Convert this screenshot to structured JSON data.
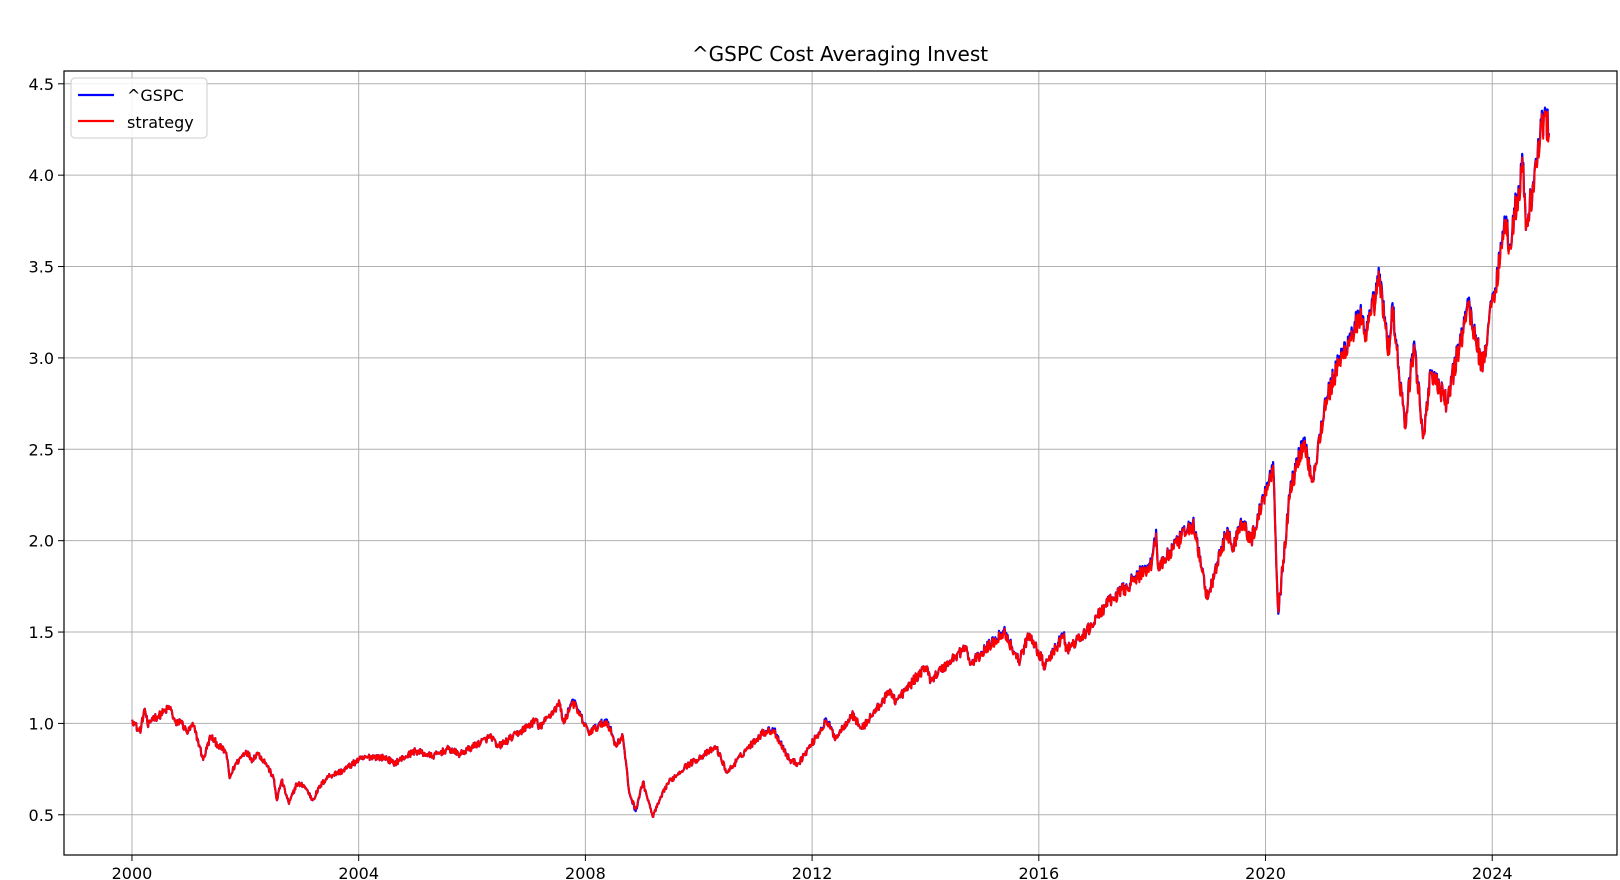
{
  "chart_data": {
    "type": "line",
    "title": "^GSPC Cost Averaging Invest",
    "xlabel": "",
    "ylabel": "",
    "x_axis": {
      "type": "date",
      "lim": [
        "1998-10-20",
        "2026-03-15"
      ],
      "ticks": [
        "2000",
        "2004",
        "2008",
        "2012",
        "2016",
        "2020",
        "2024"
      ]
    },
    "y_axis": {
      "lim": [
        0.28,
        4.57
      ],
      "ticks": [
        "0.5",
        "1.0",
        "1.5",
        "2.0",
        "2.5",
        "3.0",
        "3.5",
        "4.0",
        "4.5"
      ]
    },
    "grid": true,
    "legend": {
      "position": "top-left",
      "entries": [
        "^GSPC",
        "strategy"
      ]
    },
    "colors": {
      "^GSPC": "#0000ff",
      "strategy": "#ff0000",
      "grid": "#b0b0b0"
    },
    "series": [
      {
        "name": "^GSPC",
        "color": "#0000ff",
        "points": [
          [
            "2000-01-03",
            1.02
          ],
          [
            "2000-01-20",
            1.0
          ],
          [
            "2000-02-10",
            0.96
          ],
          [
            "2000-02-28",
            0.97
          ],
          [
            "2000-03-15",
            1.05
          ],
          [
            "2000-03-24",
            1.08
          ],
          [
            "2000-04-14",
            0.98
          ],
          [
            "2000-05-10",
            1.03
          ],
          [
            "2000-06-20",
            1.04
          ],
          [
            "2000-07-20",
            1.06
          ],
          [
            "2000-09-01",
            1.09
          ],
          [
            "2000-10-12",
            0.99
          ],
          [
            "2000-11-06",
            1.02
          ],
          [
            "2000-12-20",
            0.95
          ],
          [
            "2001-01-30",
            0.99
          ],
          [
            "2001-03-10",
            0.88
          ],
          [
            "2001-04-04",
            0.8
          ],
          [
            "2001-05-21",
            0.93
          ],
          [
            "2001-07-10",
            0.88
          ],
          [
            "2001-08-31",
            0.84
          ],
          [
            "2001-09-21",
            0.7
          ],
          [
            "2001-10-25",
            0.77
          ],
          [
            "2002-01-04",
            0.85
          ],
          [
            "2002-02-15",
            0.8
          ],
          [
            "2002-03-19",
            0.84
          ],
          [
            "2002-05-15",
            0.78
          ],
          [
            "2002-07-01",
            0.7
          ],
          [
            "2002-07-23",
            0.58
          ],
          [
            "2002-08-22",
            0.69
          ],
          [
            "2002-10-09",
            0.56
          ],
          [
            "2002-11-27",
            0.67
          ],
          [
            "2003-01-15",
            0.66
          ],
          [
            "2003-03-11",
            0.58
          ],
          [
            "2003-04-30",
            0.66
          ],
          [
            "2003-06-17",
            0.71
          ],
          [
            "2003-09-18",
            0.74
          ],
          [
            "2003-12-31",
            0.8
          ],
          [
            "2004-03-24",
            0.82
          ],
          [
            "2004-06-30",
            0.81
          ],
          [
            "2004-08-12",
            0.78
          ],
          [
            "2004-12-31",
            0.85
          ],
          [
            "2005-04-20",
            0.82
          ],
          [
            "2005-08-01",
            0.86
          ],
          [
            "2005-10-13",
            0.83
          ],
          [
            "2005-12-30",
            0.87
          ],
          [
            "2006-05-05",
            0.93
          ],
          [
            "2006-06-13",
            0.87
          ],
          [
            "2006-10-31",
            0.95
          ],
          [
            "2007-02-20",
            1.02
          ],
          [
            "2007-03-05",
            0.97
          ],
          [
            "2007-07-19",
            1.11
          ],
          [
            "2007-08-15",
            1.0
          ],
          [
            "2007-10-09",
            1.13
          ],
          [
            "2008-01-22",
            0.95
          ],
          [
            "2008-05-19",
            1.02
          ],
          [
            "2008-07-15",
            0.88
          ],
          [
            "2008-08-29",
            0.93
          ],
          [
            "2008-10-10",
            0.62
          ],
          [
            "2008-11-20",
            0.52
          ],
          [
            "2009-01-06",
            0.68
          ],
          [
            "2009-03-09",
            0.49
          ],
          [
            "2009-06-12",
            0.67
          ],
          [
            "2009-09-30",
            0.76
          ],
          [
            "2010-01-19",
            0.82
          ],
          [
            "2010-04-23",
            0.87
          ],
          [
            "2010-07-02",
            0.73
          ],
          [
            "2010-11-05",
            0.86
          ],
          [
            "2011-02-18",
            0.95
          ],
          [
            "2011-04-29",
            0.97
          ],
          [
            "2011-08-08",
            0.8
          ],
          [
            "2011-10-03",
            0.78
          ],
          [
            "2012-01-31",
            0.93
          ],
          [
            "2012-04-02",
            1.02
          ],
          [
            "2012-06-01",
            0.92
          ],
          [
            "2012-09-14",
            1.05
          ],
          [
            "2012-11-15",
            0.97
          ],
          [
            "2013-05-21",
            1.18
          ],
          [
            "2013-06-24",
            1.12
          ],
          [
            "2013-12-31",
            1.31
          ],
          [
            "2014-02-03",
            1.24
          ],
          [
            "2014-09-18",
            1.42
          ],
          [
            "2014-10-15",
            1.32
          ],
          [
            "2015-05-21",
            1.51
          ],
          [
            "2015-08-25",
            1.34
          ],
          [
            "2015-11-03",
            1.49
          ],
          [
            "2016-02-11",
            1.31
          ],
          [
            "2016-06-08",
            1.49
          ],
          [
            "2016-06-27",
            1.4
          ],
          [
            "2016-11-04",
            1.5
          ],
          [
            "2017-03-01",
            1.64
          ],
          [
            "2017-12-29",
            1.88
          ],
          [
            "2018-01-26",
            2.06
          ],
          [
            "2018-02-08",
            1.85
          ],
          [
            "2018-09-20",
            2.1
          ],
          [
            "2018-12-24",
            1.68
          ],
          [
            "2019-04-30",
            2.07
          ],
          [
            "2019-06-03",
            1.94
          ],
          [
            "2019-07-26",
            2.12
          ],
          [
            "2019-10-02",
            2.0
          ],
          [
            "2020-02-19",
            2.43
          ],
          [
            "2020-03-23",
            1.6
          ],
          [
            "2020-06-08",
            2.28
          ],
          [
            "2020-09-02",
            2.56
          ],
          [
            "2020-10-30",
            2.33
          ],
          [
            "2021-01-26",
            2.78
          ],
          [
            "2021-05-07",
            3.02
          ],
          [
            "2021-09-02",
            3.25
          ],
          [
            "2021-10-04",
            3.1
          ],
          [
            "2022-01-03",
            3.44
          ],
          [
            "2022-03-08",
            3.03
          ],
          [
            "2022-03-29",
            3.3
          ],
          [
            "2022-06-16",
            2.62
          ],
          [
            "2022-08-16",
            3.09
          ],
          [
            "2022-10-12",
            2.56
          ],
          [
            "2022-12-01",
            2.93
          ],
          [
            "2023-03-13",
            2.75
          ],
          [
            "2023-07-31",
            3.3
          ],
          [
            "2023-10-27",
            2.95
          ],
          [
            "2024-03-28",
            3.76
          ],
          [
            "2024-04-19",
            3.62
          ],
          [
            "2024-07-16",
            4.06
          ],
          [
            "2024-08-05",
            3.7
          ],
          [
            "2024-12-06",
            4.37
          ],
          [
            "2024-12-31",
            4.23
          ]
        ]
      },
      {
        "name": "strategy",
        "color": "#ff0000",
        "points": [
          [
            "2000-01-03",
            1.02
          ],
          [
            "2000-01-20",
            1.0
          ],
          [
            "2000-02-10",
            0.96
          ],
          [
            "2000-02-28",
            0.97
          ],
          [
            "2000-03-15",
            1.05
          ],
          [
            "2000-03-24",
            1.08
          ],
          [
            "2000-04-14",
            0.98
          ],
          [
            "2000-05-10",
            1.03
          ],
          [
            "2000-06-20",
            1.04
          ],
          [
            "2000-07-20",
            1.06
          ],
          [
            "2000-09-01",
            1.09
          ],
          [
            "2000-10-12",
            0.99
          ],
          [
            "2000-11-06",
            1.02
          ],
          [
            "2000-12-20",
            0.95
          ],
          [
            "2001-01-30",
            0.99
          ],
          [
            "2001-03-10",
            0.88
          ],
          [
            "2001-04-04",
            0.8
          ],
          [
            "2001-05-21",
            0.93
          ],
          [
            "2001-07-10",
            0.88
          ],
          [
            "2001-08-31",
            0.84
          ],
          [
            "2001-09-21",
            0.7
          ],
          [
            "2001-10-25",
            0.77
          ],
          [
            "2002-01-04",
            0.85
          ],
          [
            "2002-02-15",
            0.8
          ],
          [
            "2002-03-19",
            0.84
          ],
          [
            "2002-05-15",
            0.78
          ],
          [
            "2002-07-01",
            0.7
          ],
          [
            "2002-07-23",
            0.58
          ],
          [
            "2002-08-22",
            0.69
          ],
          [
            "2002-10-09",
            0.56
          ],
          [
            "2002-11-27",
            0.67
          ],
          [
            "2003-01-15",
            0.66
          ],
          [
            "2003-03-11",
            0.58
          ],
          [
            "2003-04-30",
            0.66
          ],
          [
            "2003-06-17",
            0.71
          ],
          [
            "2003-09-18",
            0.74
          ],
          [
            "2003-12-31",
            0.8
          ],
          [
            "2004-03-24",
            0.82
          ],
          [
            "2004-06-30",
            0.81
          ],
          [
            "2004-08-12",
            0.78
          ],
          [
            "2004-12-31",
            0.85
          ],
          [
            "2005-04-20",
            0.82
          ],
          [
            "2005-08-01",
            0.86
          ],
          [
            "2005-10-13",
            0.83
          ],
          [
            "2005-12-30",
            0.87
          ],
          [
            "2006-05-05",
            0.93
          ],
          [
            "2006-06-13",
            0.87
          ],
          [
            "2006-10-31",
            0.95
          ],
          [
            "2007-02-20",
            1.02
          ],
          [
            "2007-03-05",
            0.97
          ],
          [
            "2007-07-19",
            1.11
          ],
          [
            "2007-08-15",
            1.0
          ],
          [
            "2007-10-09",
            1.12
          ],
          [
            "2008-01-22",
            0.95
          ],
          [
            "2008-05-19",
            1.01
          ],
          [
            "2008-07-15",
            0.88
          ],
          [
            "2008-08-29",
            0.93
          ],
          [
            "2008-10-10",
            0.62
          ],
          [
            "2008-11-20",
            0.53
          ],
          [
            "2009-01-06",
            0.68
          ],
          [
            "2009-03-09",
            0.49
          ],
          [
            "2009-06-12",
            0.67
          ],
          [
            "2009-09-30",
            0.76
          ],
          [
            "2010-01-19",
            0.82
          ],
          [
            "2010-04-23",
            0.87
          ],
          [
            "2010-07-02",
            0.73
          ],
          [
            "2010-11-05",
            0.86
          ],
          [
            "2011-02-18",
            0.95
          ],
          [
            "2011-04-29",
            0.96
          ],
          [
            "2011-08-08",
            0.8
          ],
          [
            "2011-10-03",
            0.78
          ],
          [
            "2012-01-31",
            0.93
          ],
          [
            "2012-04-02",
            1.01
          ],
          [
            "2012-06-01",
            0.92
          ],
          [
            "2012-09-14",
            1.05
          ],
          [
            "2012-11-15",
            0.97
          ],
          [
            "2013-05-21",
            1.18
          ],
          [
            "2013-06-24",
            1.12
          ],
          [
            "2013-12-31",
            1.31
          ],
          [
            "2014-02-03",
            1.24
          ],
          [
            "2014-09-18",
            1.42
          ],
          [
            "2014-10-15",
            1.32
          ],
          [
            "2015-05-21",
            1.5
          ],
          [
            "2015-08-25",
            1.34
          ],
          [
            "2015-11-03",
            1.49
          ],
          [
            "2016-02-11",
            1.31
          ],
          [
            "2016-06-08",
            1.48
          ],
          [
            "2016-06-27",
            1.4
          ],
          [
            "2016-11-04",
            1.5
          ],
          [
            "2017-03-01",
            1.64
          ],
          [
            "2017-12-29",
            1.87
          ],
          [
            "2018-01-26",
            2.04
          ],
          [
            "2018-02-08",
            1.85
          ],
          [
            "2018-09-20",
            2.09
          ],
          [
            "2018-12-24",
            1.68
          ],
          [
            "2019-04-30",
            2.06
          ],
          [
            "2019-06-03",
            1.94
          ],
          [
            "2019-07-26",
            2.11
          ],
          [
            "2019-10-02",
            2.0
          ],
          [
            "2020-02-19",
            2.41
          ],
          [
            "2020-03-23",
            1.61
          ],
          [
            "2020-06-08",
            2.27
          ],
          [
            "2020-09-02",
            2.54
          ],
          [
            "2020-10-30",
            2.33
          ],
          [
            "2021-01-26",
            2.77
          ],
          [
            "2021-05-07",
            3.0
          ],
          [
            "2021-09-02",
            3.23
          ],
          [
            "2021-10-04",
            3.09
          ],
          [
            "2022-01-03",
            3.42
          ],
          [
            "2022-03-08",
            3.02
          ],
          [
            "2022-03-29",
            3.28
          ],
          [
            "2022-06-16",
            2.62
          ],
          [
            "2022-08-16",
            3.07
          ],
          [
            "2022-10-12",
            2.56
          ],
          [
            "2022-12-01",
            2.92
          ],
          [
            "2023-03-13",
            2.75
          ],
          [
            "2023-07-31",
            3.28
          ],
          [
            "2023-10-27",
            2.95
          ],
          [
            "2024-03-28",
            3.74
          ],
          [
            "2024-04-19",
            3.61
          ],
          [
            "2024-07-16",
            4.04
          ],
          [
            "2024-08-05",
            3.7
          ],
          [
            "2024-12-06",
            4.35
          ],
          [
            "2024-12-31",
            4.22
          ]
        ]
      }
    ]
  }
}
